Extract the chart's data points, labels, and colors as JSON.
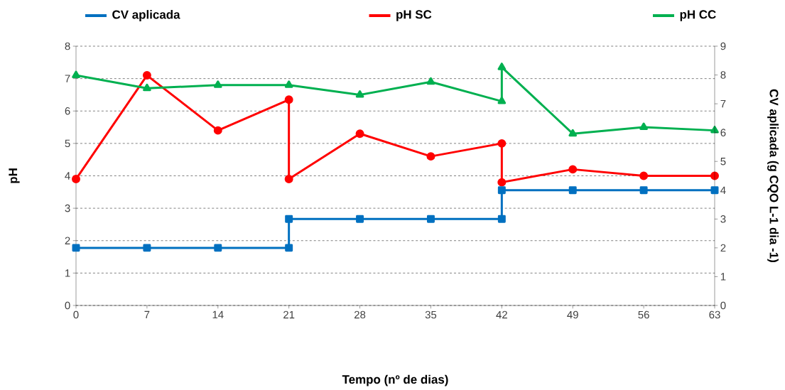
{
  "chart_data": {
    "type": "line",
    "xlabel": "Tempo (nº de dias)",
    "ylabel": "pH",
    "y2label": "CV aplicada (g CQO L-1 dia -1)",
    "xlim": [
      0,
      63
    ],
    "xticks": [
      0,
      7,
      14,
      21,
      28,
      35,
      42,
      49,
      56,
      63
    ],
    "ylim": [
      0,
      8
    ],
    "yticks": [
      0,
      1,
      2,
      3,
      4,
      5,
      6,
      7,
      8
    ],
    "y2lim": [
      0,
      9
    ],
    "y2ticks": [
      0,
      1,
      2,
      3,
      4,
      5,
      6,
      7,
      8,
      9
    ],
    "grid": "y",
    "legend": "top",
    "line_style": "solid",
    "series": [
      {
        "name": "CV aplicada",
        "color": "#0070c0",
        "axis": "y2",
        "marker": "square",
        "x": [
          0,
          7,
          14,
          21,
          21,
          28,
          35,
          42,
          42,
          49,
          56,
          63
        ],
        "values": [
          2,
          2,
          2,
          2,
          3,
          3,
          3,
          3,
          4,
          4,
          4,
          4
        ]
      },
      {
        "name": "pH SC",
        "color": "#ff0000",
        "axis": "y",
        "marker": "circle",
        "x": [
          0,
          7,
          14,
          21,
          21,
          28,
          35,
          42,
          42,
          49,
          56,
          63
        ],
        "values": [
          3.9,
          7.1,
          5.4,
          6.35,
          3.9,
          5.3,
          4.6,
          5.0,
          3.8,
          4.2,
          4.0,
          4.0
        ]
      },
      {
        "name": "pH CC",
        "color": "#00b050",
        "axis": "y",
        "marker": "triangle",
        "x": [
          0,
          7,
          14,
          21,
          28,
          35,
          42,
          42,
          49,
          56,
          63
        ],
        "values": [
          7.1,
          6.7,
          6.8,
          6.8,
          6.5,
          6.9,
          6.3,
          7.35,
          5.3,
          5.5,
          5.4
        ]
      }
    ]
  }
}
